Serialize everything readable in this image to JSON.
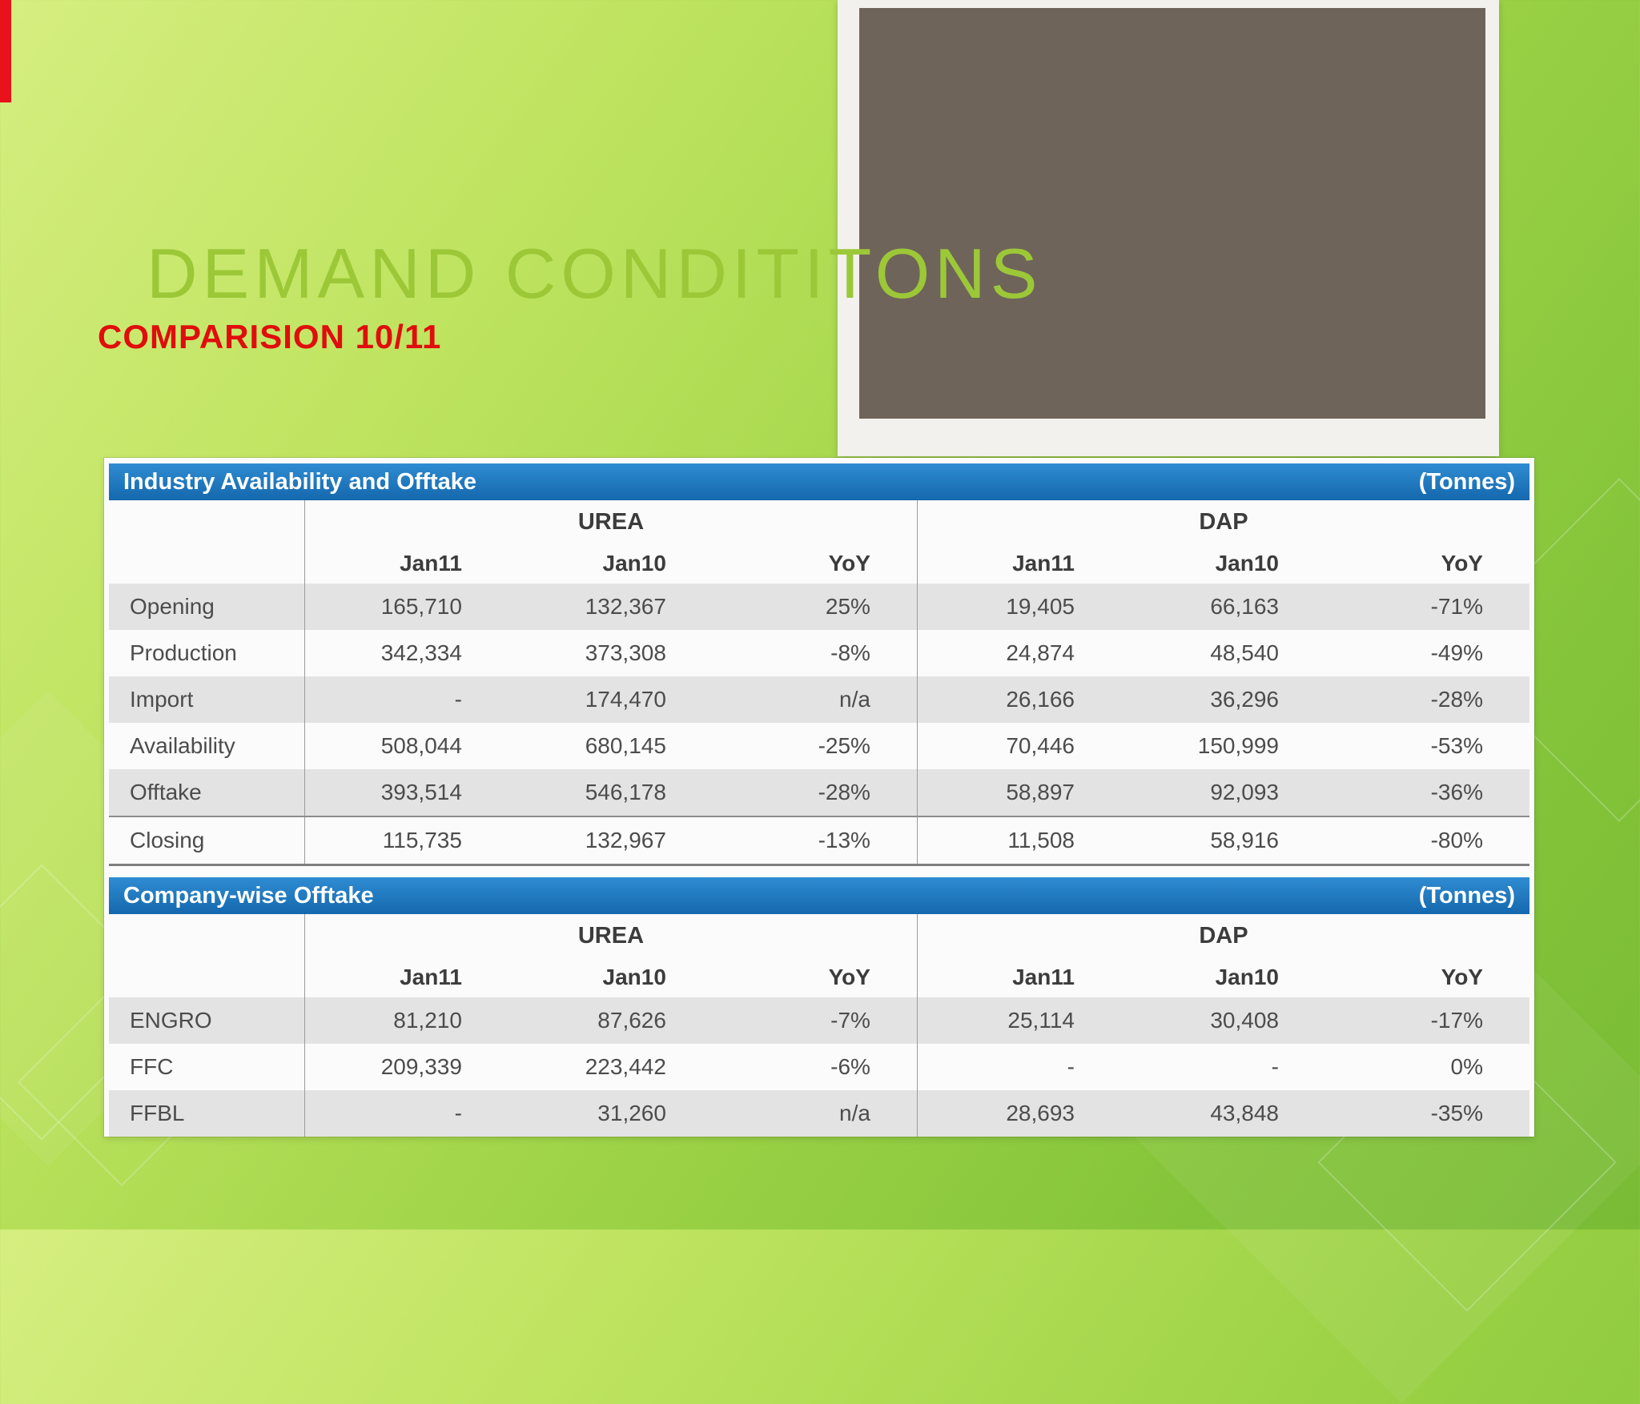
{
  "slide": {
    "title": "DEMAND CONDITITONS",
    "subtitle": "COMPARISION 10/11"
  },
  "colors": {
    "accent_red": "#e8111c",
    "header_blue": "#1a78c3",
    "title_green": "#9cc838",
    "photo_placeholder_gray": "#6f6459"
  },
  "tables": [
    {
      "header": "Industry Availability and Offtake",
      "unit": "(Tonnes)",
      "groups": [
        "UREA",
        "DAP"
      ],
      "col_headers": [
        "Jan11",
        "Jan10",
        "YoY",
        "Jan11",
        "Jan10",
        "YoY"
      ],
      "rows": [
        {
          "label": "Opening",
          "cells": [
            "165,710",
            "132,367",
            "25%",
            "19,405",
            "66,163",
            "-71%"
          ]
        },
        {
          "label": "Production",
          "cells": [
            "342,334",
            "373,308",
            "-8%",
            "24,874",
            "48,540",
            "-49%"
          ]
        },
        {
          "label": "Import",
          "cells": [
            "-",
            "174,470",
            "n/a",
            "26,166",
            "36,296",
            "-28%"
          ]
        },
        {
          "label": "Availability",
          "cells": [
            "508,044",
            "680,145",
            "-25%",
            "70,446",
            "150,999",
            "-53%"
          ]
        },
        {
          "label": "Offtake",
          "cells": [
            "393,514",
            "546,178",
            "-28%",
            "58,897",
            "92,093",
            "-36%"
          ]
        },
        {
          "label": "Closing",
          "cells": [
            "115,735",
            "132,967",
            "-13%",
            "11,508",
            "58,916",
            "-80%"
          ]
        }
      ]
    },
    {
      "header": "Company-wise Offtake",
      "unit": "(Tonnes)",
      "groups": [
        "UREA",
        "DAP"
      ],
      "col_headers": [
        "Jan11",
        "Jan10",
        "YoY",
        "Jan11",
        "Jan10",
        "YoY"
      ],
      "rows": [
        {
          "label": "ENGRO",
          "cells": [
            "81,210",
            "87,626",
            "-7%",
            "25,114",
            "30,408",
            "-17%"
          ]
        },
        {
          "label": "FFC",
          "cells": [
            "209,339",
            "223,442",
            "-6%",
            "-",
            "-",
            "0%"
          ]
        },
        {
          "label": "FFBL",
          "cells": [
            "-",
            "31,260",
            "n/a",
            "28,693",
            "43,848",
            "-35%"
          ]
        }
      ]
    }
  ]
}
